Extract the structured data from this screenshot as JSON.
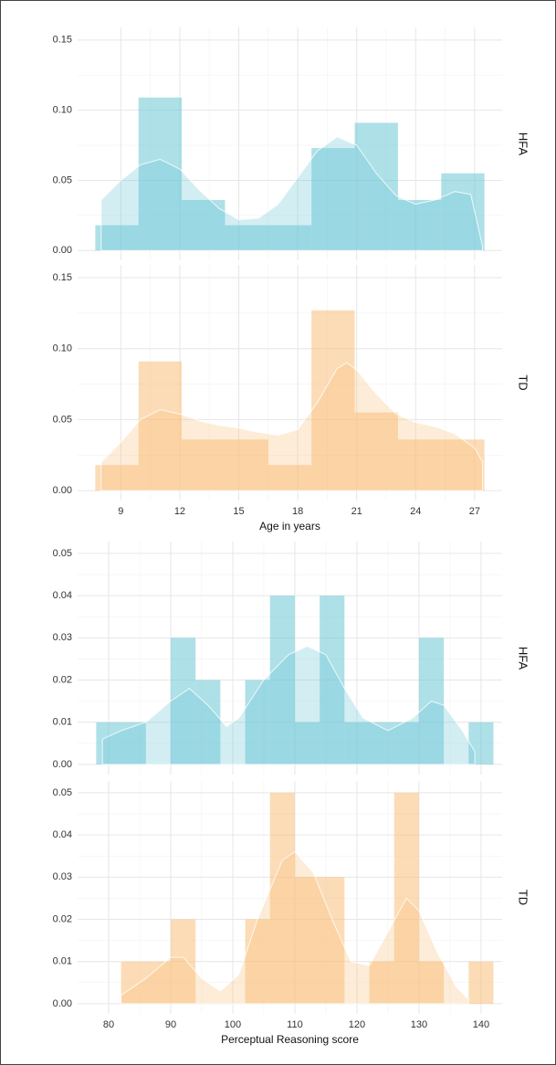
{
  "chart_data": [
    {
      "type": "histogram",
      "xlabel": "Age in years",
      "grid": true,
      "bins": [
        7.7,
        9.9,
        12.1,
        14.3,
        16.5,
        18.7,
        20.9,
        23.1,
        25.3,
        27.5
      ],
      "xlim": [
        6.8,
        28.4
      ],
      "xticks": [
        9,
        12,
        15,
        18,
        21,
        24,
        27
      ],
      "ylim": [
        -0.007,
        0.159
      ],
      "yticks": [
        {
          "value": 0,
          "label": "0.00"
        },
        0.05,
        {
          "value": 0.1,
          "label": "0.10"
        },
        0.15
      ],
      "series": [
        {
          "name": "HFA",
          "color": "#6cc7d6",
          "values": [
            0.018,
            0.109,
            0.036,
            0.018,
            0.018,
            0.073,
            0.091,
            0.036,
            0.055
          ],
          "density": {
            "x": [
              8,
              9,
              10,
              11,
              12,
              13,
              14,
              15,
              16,
              17,
              18,
              19,
              20,
              21,
              22,
              23,
              24,
              25,
              26,
              26.8,
              27.4
            ],
            "values": [
              0.036,
              0.05,
              0.061,
              0.065,
              0.058,
              0.043,
              0.03,
              0.022,
              0.023,
              0.033,
              0.052,
              0.071,
              0.081,
              0.075,
              0.055,
              0.039,
              0.033,
              0.036,
              0.042,
              0.04,
              0.003
            ]
          }
        },
        {
          "name": "TD",
          "color": "#f9c07c",
          "values": [
            0.018,
            0.091,
            0.036,
            0.036,
            0.018,
            0.127,
            0.055,
            0.036,
            0.036
          ],
          "density": {
            "x": [
              8,
              9,
              10,
              11,
              12,
              13,
              14,
              15,
              16,
              17,
              18,
              19,
              20,
              20.5,
              21,
              22,
              23,
              24,
              25,
              26,
              27,
              27.4
            ],
            "values": [
              0.02,
              0.034,
              0.05,
              0.057,
              0.054,
              0.049,
              0.046,
              0.044,
              0.041,
              0.039,
              0.043,
              0.062,
              0.086,
              0.09,
              0.085,
              0.068,
              0.054,
              0.048,
              0.045,
              0.04,
              0.03,
              0.02
            ]
          }
        }
      ]
    },
    {
      "type": "histogram",
      "xlabel": "Perceptual Reasoning score",
      "grid": true,
      "bins": [
        78,
        82,
        86,
        90,
        94,
        98,
        102,
        106,
        110,
        114,
        118,
        122,
        126,
        130,
        134,
        138,
        142
      ],
      "xlim": [
        75,
        143.4
      ],
      "xticks": [
        80,
        90,
        100,
        110,
        120,
        130,
        140
      ],
      "ylim": [
        -0.0024,
        0.0528
      ],
      "yticks": [
        {
          "value": 0,
          "label": "0.00"
        },
        0.01,
        0.02,
        0.03,
        0.04,
        0.05
      ],
      "series": [
        {
          "name": "HFA",
          "color": "#6cc7d6",
          "values": [
            0.01,
            0.01,
            0,
            0.03,
            0.02,
            0,
            0.02,
            0.04,
            0.01,
            0.04,
            0.01,
            0.01,
            0.01,
            0.03,
            0,
            0.01
          ],
          "density": {
            "x": [
              79,
              82,
              86,
              90,
              93,
              96,
              99,
              101,
              105,
              109,
              112,
              115,
              118,
              121,
              125,
              129,
              132,
              134,
              137,
              139
            ],
            "values": [
              0.006,
              0.008,
              0.01,
              0.015,
              0.018,
              0.014,
              0.009,
              0.011,
              0.02,
              0.026,
              0.028,
              0.026,
              0.018,
              0.011,
              0.008,
              0.011,
              0.015,
              0.014,
              0.008,
              0.003
            ]
          }
        },
        {
          "name": "TD",
          "color": "#f9c07c",
          "values": [
            0,
            0.01,
            0.01,
            0.02,
            0,
            0,
            0.02,
            0.05,
            0.03,
            0.03,
            0,
            0.01,
            0.05,
            0.01,
            0,
            0.01
          ],
          "density": {
            "x": [
              82,
              86,
              90,
              92,
              95,
              98,
              101,
              104,
              108,
              110,
              113,
              116,
              119,
              122,
              125,
              128,
              130,
              133,
              136,
              138
            ],
            "values": [
              0.002,
              0.006,
              0.011,
              0.011,
              0.006,
              0.003,
              0.007,
              0.02,
              0.034,
              0.036,
              0.031,
              0.02,
              0.01,
              0.009,
              0.017,
              0.025,
              0.022,
              0.012,
              0.004,
              0.001
            ]
          }
        }
      ]
    }
  ]
}
